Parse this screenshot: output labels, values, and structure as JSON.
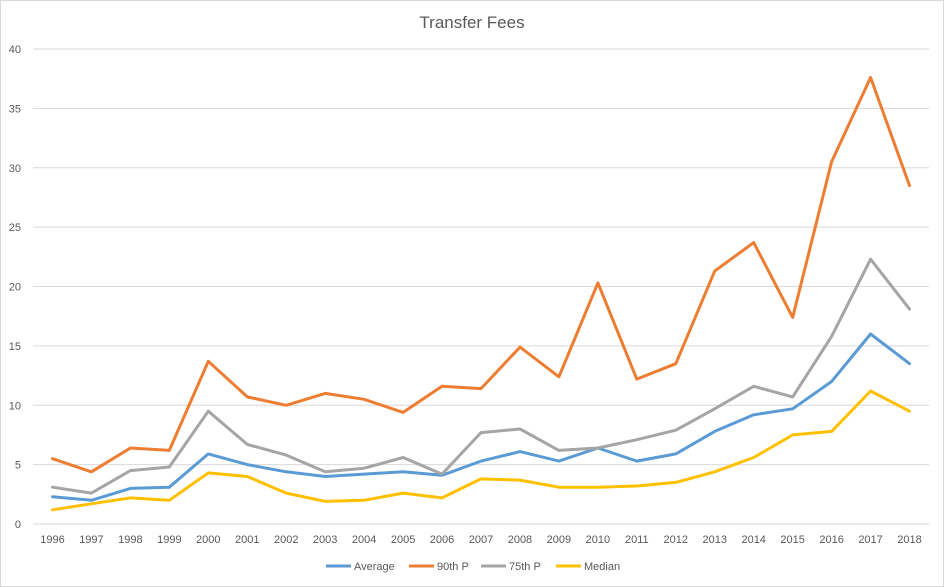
{
  "chart_data": {
    "type": "line",
    "title": "Transfer Fees",
    "xlabel": "",
    "ylabel": "",
    "ylim": [
      0,
      40
    ],
    "ytick_step": 5,
    "grid": true,
    "legend_position": "bottom",
    "categories": [
      "1996",
      "1997",
      "1998",
      "1999",
      "2000",
      "2001",
      "2002",
      "2003",
      "2004",
      "2005",
      "2006",
      "2007",
      "2008",
      "2009",
      "2010",
      "2011",
      "2012",
      "2013",
      "2014",
      "2015",
      "2016",
      "2017",
      "2018"
    ],
    "series": [
      {
        "name": "Average",
        "color": "#5b9bd5",
        "values": [
          2.3,
          2.0,
          3.0,
          3.1,
          5.9,
          5.0,
          4.4,
          4.0,
          4.2,
          4.4,
          4.1,
          5.3,
          6.1,
          5.3,
          6.4,
          5.3,
          5.9,
          7.8,
          9.2,
          9.7,
          12.0,
          16.0,
          13.5
        ]
      },
      {
        "name": "90th P",
        "color": "#ed7d31",
        "values": [
          5.5,
          4.4,
          6.4,
          6.2,
          13.7,
          10.7,
          10.0,
          11.0,
          10.5,
          9.4,
          11.6,
          11.4,
          14.9,
          12.4,
          20.3,
          12.2,
          13.5,
          21.3,
          23.7,
          17.4,
          30.5,
          37.6,
          28.5
        ]
      },
      {
        "name": "75th P",
        "color": "#a5a5a5",
        "values": [
          3.1,
          2.6,
          4.5,
          4.8,
          9.5,
          6.7,
          5.8,
          4.4,
          4.7,
          5.6,
          4.2,
          7.7,
          8.0,
          6.2,
          6.4,
          7.1,
          7.9,
          9.7,
          11.6,
          10.7,
          15.8,
          22.3,
          18.1
        ]
      },
      {
        "name": "Median",
        "color": "#ffc000",
        "values": [
          1.2,
          1.7,
          2.2,
          2.0,
          4.3,
          4.0,
          2.6,
          1.9,
          2.0,
          2.6,
          2.2,
          3.8,
          3.7,
          3.1,
          3.1,
          3.2,
          3.5,
          4.4,
          5.6,
          7.5,
          7.8,
          11.2,
          9.5
        ]
      }
    ]
  }
}
